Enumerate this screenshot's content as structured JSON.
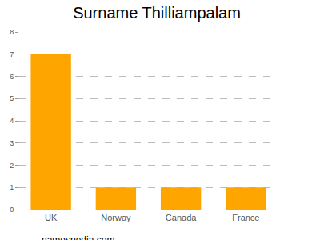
{
  "chart_data": {
    "type": "bar",
    "title": "Surname Thilliampalam",
    "categories": [
      "UK",
      "Norway",
      "Canada",
      "France"
    ],
    "values": [
      7,
      1,
      1,
      1
    ],
    "color": "#ffa500",
    "ylim": [
      0,
      8
    ],
    "yticks": [
      0,
      1,
      2,
      3,
      4,
      5,
      6,
      7,
      8
    ],
    "grid": true,
    "annotations": [
      "namespedia.com"
    ]
  }
}
